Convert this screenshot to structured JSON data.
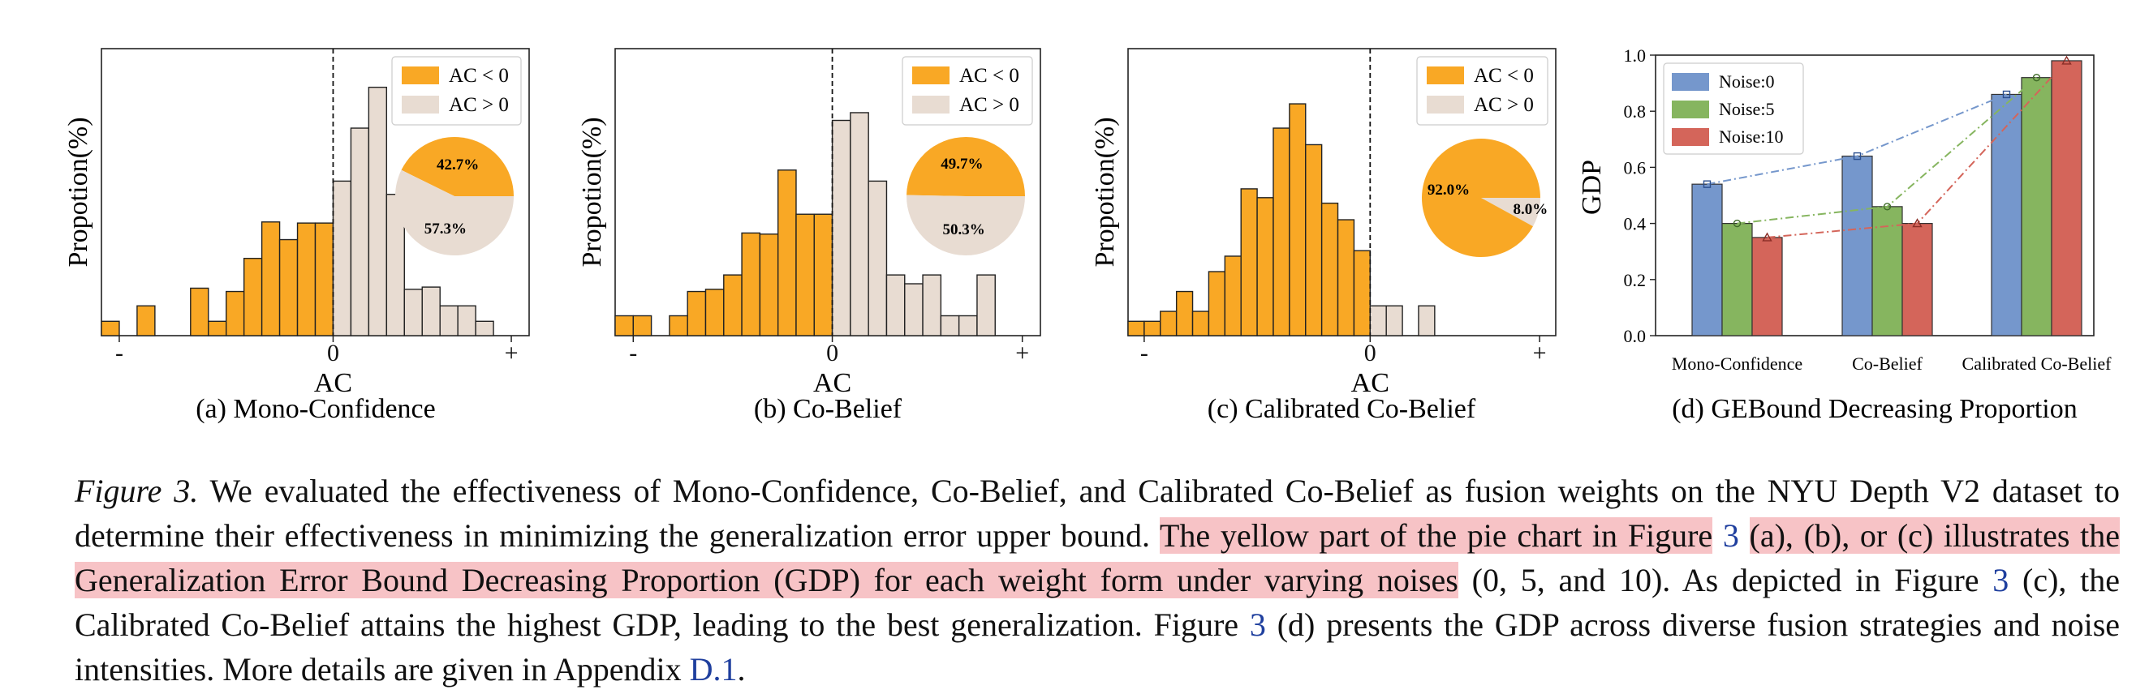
{
  "colors": {
    "negative": "#F9A825",
    "positive": "#E8DCD2",
    "noise0": "#7597CC",
    "noise5": "#86B55F",
    "noise10": "#D4655A",
    "highlight": "#f7c3c6",
    "link": "#1f3f9e"
  },
  "chart_data": [
    {
      "type": "bar",
      "subtype": "histogram",
      "caption": "(a) Mono-Confidence",
      "xlabel": "AC",
      "ylabel": "Propotion(%)",
      "xticks": [
        "-",
        "0",
        "+"
      ],
      "legend": [
        "AC < 0",
        "AC > 0"
      ],
      "legend_position": "top-right",
      "x_range": [
        -13,
        11
      ],
      "y_range": [
        0,
        26
      ],
      "ref_line": "0",
      "bins_negative": [
        {
          "x": -12,
          "value": 1.3
        },
        {
          "x": -10,
          "value": 2.7
        },
        {
          "x": -7,
          "value": 4.3
        },
        {
          "x": -6,
          "value": 1.3
        },
        {
          "x": -5,
          "value": 4.0
        },
        {
          "x": -4,
          "value": 7.0
        },
        {
          "x": -3,
          "value": 10.3
        },
        {
          "x": -2,
          "value": 8.7
        },
        {
          "x": -1,
          "value": 10.2
        },
        {
          "x": 0,
          "value": 10.2
        }
      ],
      "bins_positive": [
        {
          "x": 0,
          "value": 14.0
        },
        {
          "x": 1,
          "value": 18.8
        },
        {
          "x": 2,
          "value": 22.5
        },
        {
          "x": 3,
          "value": 12.8
        },
        {
          "x": 4,
          "value": 4.2
        },
        {
          "x": 5,
          "value": 4.4
        },
        {
          "x": 6,
          "value": 2.7
        },
        {
          "x": 7,
          "value": 2.7
        },
        {
          "x": 8,
          "value": 1.3
        }
      ],
      "pie": [
        {
          "label": "AC < 0",
          "value": 42.7,
          "text": "42.7%"
        },
        {
          "label": "AC > 0",
          "value": 57.3,
          "text": "57.3%"
        }
      ]
    },
    {
      "type": "bar",
      "subtype": "histogram",
      "caption": "(b) Co-Belief",
      "xlabel": "AC",
      "ylabel": "Propotion(%)",
      "xticks": [
        "-",
        "0",
        "+"
      ],
      "legend": [
        "AC < 0",
        "AC > 0"
      ],
      "legend_position": "top-right",
      "x_range": [
        -12,
        11.5
      ],
      "y_range": [
        0,
        26
      ],
      "ref_line": "0",
      "bins_negative": [
        {
          "x": -11,
          "value": 1.8
        },
        {
          "x": -10,
          "value": 1.8
        },
        {
          "x": -8,
          "value": 1.8
        },
        {
          "x": -7,
          "value": 4.0
        },
        {
          "x": -6,
          "value": 4.2
        },
        {
          "x": -5,
          "value": 5.5
        },
        {
          "x": -4,
          "value": 9.3
        },
        {
          "x": -3,
          "value": 9.2
        },
        {
          "x": -2,
          "value": 15.0
        },
        {
          "x": -1,
          "value": 11.0
        },
        {
          "x": 0,
          "value": 11.0
        }
      ],
      "bins_positive": [
        {
          "x": 0,
          "value": 19.5
        },
        {
          "x": 1,
          "value": 20.2
        },
        {
          "x": 2,
          "value": 14.0
        },
        {
          "x": 3,
          "value": 5.5
        },
        {
          "x": 4,
          "value": 4.7
        },
        {
          "x": 5,
          "value": 5.5
        },
        {
          "x": 6,
          "value": 1.8
        },
        {
          "x": 7,
          "value": 1.8
        },
        {
          "x": 8,
          "value": 5.5
        }
      ],
      "pie": [
        {
          "label": "AC < 0",
          "value": 49.7,
          "text": "49.7%"
        },
        {
          "label": "AC > 0",
          "value": 50.3,
          "text": "50.3%"
        }
      ]
    },
    {
      "type": "bar",
      "subtype": "histogram",
      "caption": "(c) Calibrated Co-Belief",
      "xlabel": "AC",
      "ylabel": "Propotion(%)",
      "xticks": [
        "-",
        "0",
        "+"
      ],
      "legend": [
        "AC < 0",
        "AC > 0"
      ],
      "legend_position": "top-right",
      "x_range": [
        -15,
        11.5
      ],
      "y_range": [
        0,
        26
      ],
      "ref_line": "0",
      "bins_negative": [
        {
          "x": -14,
          "value": 1.3
        },
        {
          "x": -13,
          "value": 1.3
        },
        {
          "x": -12,
          "value": 2.2
        },
        {
          "x": -11,
          "value": 4.0
        },
        {
          "x": -10,
          "value": 2.2
        },
        {
          "x": -9,
          "value": 5.8
        },
        {
          "x": -8,
          "value": 7.2
        },
        {
          "x": -7,
          "value": 13.3
        },
        {
          "x": -6,
          "value": 12.5
        },
        {
          "x": -5,
          "value": 18.8
        },
        {
          "x": -4,
          "value": 21.0
        },
        {
          "x": -3,
          "value": 17.3
        },
        {
          "x": -2,
          "value": 12.0
        },
        {
          "x": -1,
          "value": 10.5
        },
        {
          "x": 0,
          "value": 7.7
        }
      ],
      "bins_positive": [
        {
          "x": 0,
          "value": 2.7
        },
        {
          "x": 1,
          "value": 2.7
        },
        {
          "x": 3,
          "value": 2.7
        }
      ],
      "pie": [
        {
          "label": "AC < 0",
          "value": 92.0,
          "text": "92.0%"
        },
        {
          "label": "AC > 0",
          "value": 8.0,
          "text": "8.0%"
        }
      ]
    },
    {
      "type": "bar",
      "caption": "(d) GEBound Decreasing Proportion",
      "xlabel": "",
      "ylabel": "GDP",
      "ylim": [
        0,
        1.0
      ],
      "yticks": [
        "0.0",
        "0.2",
        "0.4",
        "0.6",
        "0.8",
        "1.0"
      ],
      "legend_position": "top-left",
      "categories": [
        "Mono-Confidence",
        "Co-Belief",
        "Calibrated Co-Belief"
      ],
      "series": [
        {
          "name": "Noise:0",
          "values": [
            0.54,
            0.64,
            0.86
          ]
        },
        {
          "name": "Noise:5",
          "values": [
            0.4,
            0.46,
            0.92
          ]
        },
        {
          "name": "Noise:10",
          "values": [
            0.35,
            0.4,
            0.98
          ]
        }
      ]
    }
  ],
  "caption": {
    "label": "Figure 3.",
    "part1": "We evaluated the effectiveness of Mono-Confidence, Co-Belief, and Calibrated Co-Belief as fusion weights on the NYU Depth V2 dataset to determine their effectiveness in minimizing the generalization error upper bound.",
    "highlight1": "The yellow part of the pie chart in Figure",
    "ref1": "3",
    "highlight2": "(a), (b), or (c) illustrates the Generalization Error Bound Decreasing Proportion (GDP) for each weight form under varying noises",
    "part2": "(0, 5, and 10). As depicted in Figure",
    "ref2": "3",
    "part3": "(c), the Calibrated Co-Belief attains the highest GDP, leading to the best generalization. Figure",
    "ref3": "3",
    "part4": "(d) presents the GDP across diverse fusion strategies and noise intensities. More details are given in Appendix",
    "ref4": "D.1",
    "part5": "."
  }
}
